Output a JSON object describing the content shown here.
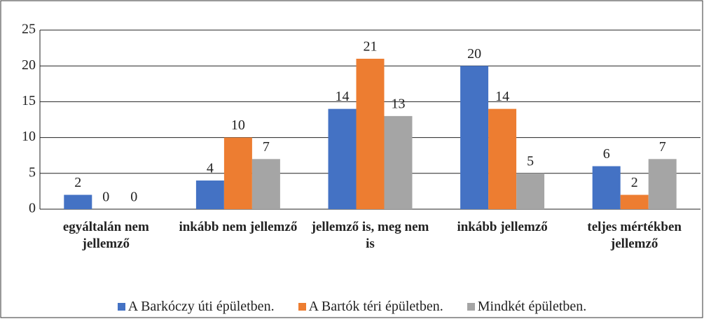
{
  "chart_data": {
    "type": "bar",
    "categories": [
      "egyáltalán nem jellemző",
      "inkább nem jellemző",
      "jellemző is, meg nem is",
      "inkább jellemző",
      "teljes mértékben jellemző"
    ],
    "series": [
      {
        "name": "A Barkóczy úti épületben.",
        "color": "#4472c4",
        "values": [
          2,
          4,
          14,
          20,
          6
        ]
      },
      {
        "name": "A Bartók téri épületben.",
        "color": "#ed7d31",
        "values": [
          0,
          10,
          21,
          14,
          2
        ]
      },
      {
        "name": "Mindkét épületben.",
        "color": "#a5a5a5",
        "values": [
          0,
          7,
          13,
          5,
          7
        ]
      }
    ],
    "ylim": [
      0,
      25
    ],
    "yticks": [
      0,
      5,
      10,
      15,
      20,
      25
    ],
    "grid": true,
    "legend": "bottom"
  }
}
